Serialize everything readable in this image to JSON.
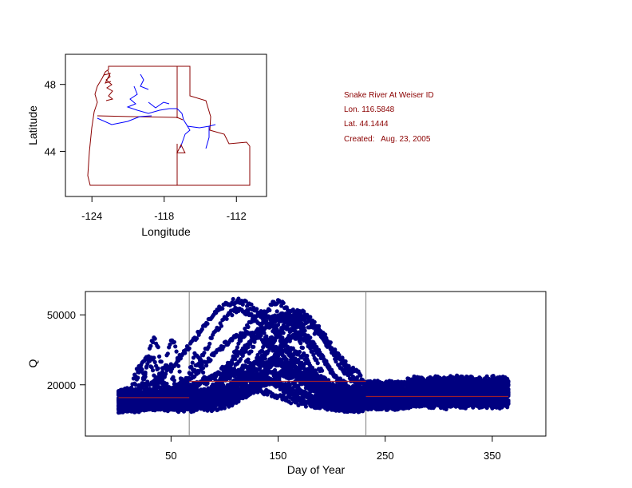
{
  "info": {
    "station": "Snake River At Weiser ID",
    "lon": "Lon. 116.5848",
    "lat": "Lat. 44.1444",
    "created": "Created:   Aug. 23, 2005"
  },
  "colors": {
    "border": "#8b0000",
    "river": "#0000ff",
    "points": "#000080",
    "trend": "#b22222",
    "vline": "#808080"
  },
  "chart_data": [
    {
      "type": "map",
      "xlabel": "Longitude",
      "ylabel": "Latitude",
      "xlim": [
        -126.2,
        -109.5
      ],
      "ylim": [
        41.3,
        49.8
      ],
      "x_ticks": [
        -124,
        -118,
        -112
      ],
      "x_tick_labels": [
        "-124",
        "-118",
        "-112"
      ],
      "y_ticks": [
        44,
        48
      ],
      "y_tick_labels": [
        "44",
        "48"
      ],
      "station_marker": {
        "shape": "triangle",
        "lon": -116.6,
        "lat": 44.1
      }
    },
    {
      "type": "scatter",
      "xlabel": "Day of Year",
      "ylabel": "Q",
      "xlim": [
        -30,
        400
      ],
      "ylim": [
        -2000,
        60000
      ],
      "x_ticks": [
        50,
        150,
        250,
        350
      ],
      "x_tick_labels": [
        "50",
        "150",
        "250",
        "350"
      ],
      "y_ticks": [
        20000,
        50000
      ],
      "y_tick_labels": [
        "20000",
        "50000"
      ],
      "vertical_lines": [
        67,
        232
      ],
      "segment_means": [
        {
          "x0": 1,
          "x1": 67,
          "y": 14500
        },
        {
          "x0": 67,
          "x1": 232,
          "y": 21500
        },
        {
          "x0": 232,
          "x1": 365,
          "y": 15000
        }
      ]
    }
  ]
}
